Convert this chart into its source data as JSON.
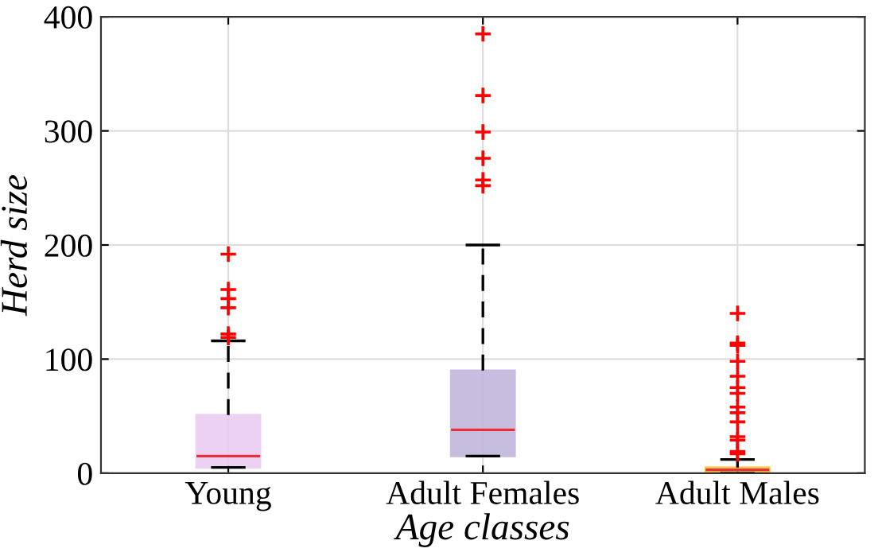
{
  "chart_data": {
    "type": "box",
    "xlabel": "Age classes",
    "ylabel": "Herd size",
    "categories": [
      "Young",
      "Adult Females",
      "Adult Males"
    ],
    "boxes": [
      {
        "low": 5,
        "q1": 5,
        "median": 15,
        "q3": 51,
        "high": 116,
        "outliers": [
          192,
          161,
          153,
          145,
          122,
          119
        ]
      },
      {
        "low": 15,
        "q1": 15,
        "median": 38,
        "q3": 90,
        "high": 200,
        "outliers": [
          385,
          331,
          299,
          276,
          257,
          252
        ]
      },
      {
        "low": 0,
        "q1": 1,
        "median": 3,
        "q3": 5,
        "high": 12,
        "outliers": [
          140,
          114,
          112,
          98,
          85,
          75,
          70,
          58,
          53,
          45,
          32,
          29,
          19,
          17
        ]
      }
    ],
    "colors": [
      "#ebcdf2",
      "#c2b8dc",
      "#f9c33e"
    ],
    "ylim": [
      0,
      400
    ],
    "yticks": [
      0,
      100,
      200,
      300,
      400
    ],
    "grid": true,
    "marker": "cross"
  }
}
